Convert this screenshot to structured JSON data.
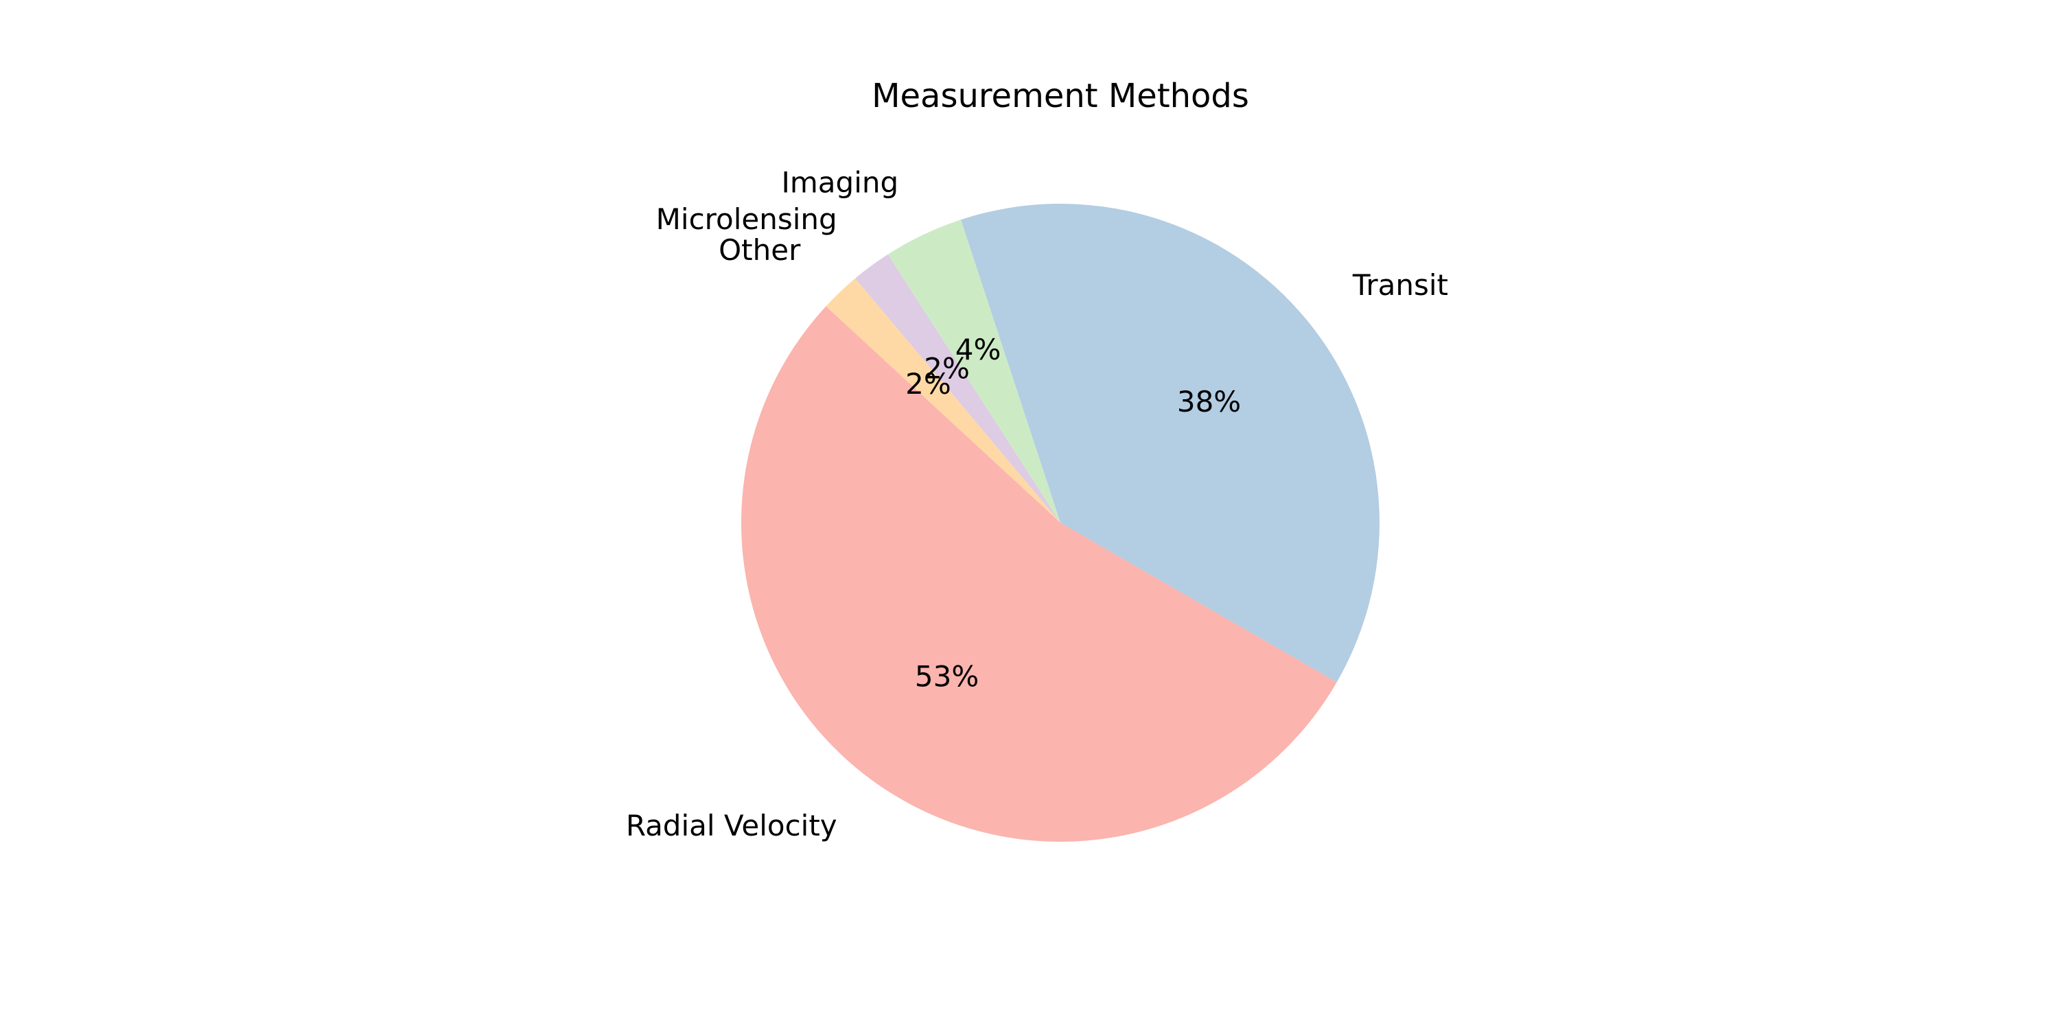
{
  "chart_data": {
    "type": "pie",
    "title": "Measurement Methods",
    "categories": [
      "Transit",
      "Imaging",
      "Microlensing",
      "Other",
      "Radial Velocity"
    ],
    "values": [
      38,
      4,
      2,
      2,
      53
    ],
    "percent_labels": [
      "38%",
      "4%",
      "2%",
      "2%",
      "53%"
    ],
    "colors": [
      "#b3cde3",
      "#ccebc5",
      "#decbe4",
      "#fed9a6",
      "#fbb4ae"
    ],
    "start_angle_deg": -30,
    "direction": "counterclockwise",
    "legend": "none"
  }
}
